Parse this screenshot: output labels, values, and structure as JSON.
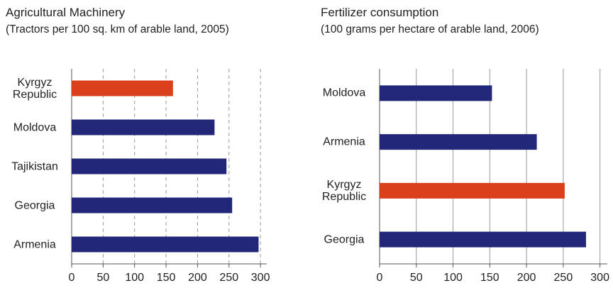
{
  "chart_data": [
    {
      "type": "barh",
      "title": "Agricultural Machinery",
      "subtitle": "(Tractors per 100 sq. km of arable land, 2005)",
      "categories": [
        "Kyrgyz Republic",
        "Moldova",
        "Tajikistan",
        "Georgia",
        "Armenia"
      ],
      "values": [
        161,
        227,
        246,
        255,
        297
      ],
      "colors": [
        "#d9401b",
        "#22277a",
        "#22277a",
        "#22277a",
        "#22277a"
      ],
      "xlim": [
        0,
        310
      ],
      "xticks": [
        0,
        50,
        100,
        150,
        200,
        250,
        300
      ],
      "grid": "dashed"
    },
    {
      "type": "barh",
      "title": "Fertilizer consumption",
      "subtitle": "(100 grams per hectare of arable land, 2006)",
      "categories": [
        "Moldova",
        "Armenia",
        "Kyrgyz Republic",
        "Georgia"
      ],
      "values": [
        153,
        214,
        252,
        281
      ],
      "colors": [
        "#22277a",
        "#22277a",
        "#d9401b",
        "#22277a"
      ],
      "xlim": [
        0,
        310
      ],
      "xticks": [
        0,
        50,
        100,
        150,
        200,
        250,
        300
      ],
      "grid": "solid"
    }
  ]
}
